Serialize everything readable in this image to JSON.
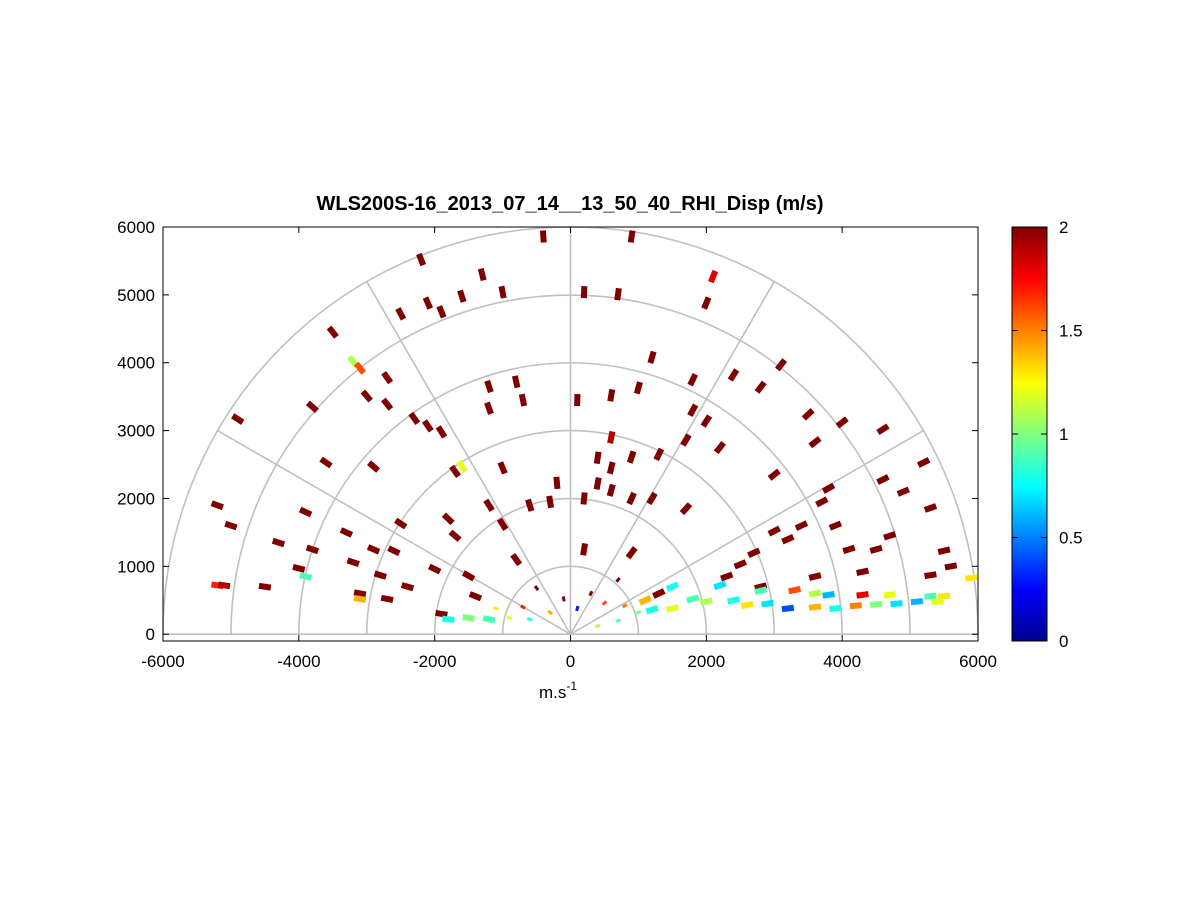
{
  "chart_data": {
    "type": "heatmap",
    "title": "WLS200S-16_2013_07_14__13_50_40_RHI_Disp (m/s)",
    "xlabel_base": "m.s",
    "xlabel_exp": "-1",
    "ylabel": "",
    "xlim": [
      -6000,
      6000
    ],
    "ylim": [
      -100,
      6000
    ],
    "xticks": [
      -6000,
      -4000,
      -2000,
      0,
      2000,
      4000,
      6000
    ],
    "xtick_labels": [
      "-6000",
      "-4000",
      "-2000",
      "0",
      "2000",
      "4000",
      "6000"
    ],
    "yticks": [
      0,
      1000,
      2000,
      3000,
      4000,
      5000,
      6000
    ],
    "ytick_labels": [
      "0",
      "1000",
      "2000",
      "3000",
      "4000",
      "5000",
      "6000"
    ],
    "polar_grid": {
      "range_rings": [
        1000,
        2000,
        3000,
        4000,
        5000,
        6000
      ],
      "spoke_angles_deg": [
        0,
        30,
        60,
        90,
        120,
        150,
        180
      ]
    },
    "colorbar": {
      "colormap": "jet",
      "limits": [
        0,
        2
      ],
      "ticks": [
        0,
        0.5,
        1,
        1.5,
        2
      ],
      "tick_labels": [
        "0",
        "0.5",
        "1",
        "1.5",
        "2"
      ]
    },
    "grid": true,
    "legend": "none",
    "cells_note_units": "x,y in data units; value in m/s",
    "cells": [
      [
        -400,
        5860,
        2
      ],
      [
        900,
        5860,
        2
      ],
      [
        -2200,
        5520,
        2
      ],
      [
        -1300,
        5300,
        2
      ],
      [
        -1000,
        5040,
        2
      ],
      [
        200,
        5040,
        2
      ],
      [
        2100,
        5270,
        1.8
      ],
      [
        2000,
        4880,
        2
      ],
      [
        -1600,
        4980,
        2
      ],
      [
        -2100,
        4880,
        2
      ],
      [
        -2500,
        4720,
        2
      ],
      [
        -1900,
        4750,
        2
      ],
      [
        700,
        5010,
        2
      ],
      [
        -3500,
        4450,
        2
      ],
      [
        -3800,
        3350,
        2
      ],
      [
        -4900,
        3170,
        2
      ],
      [
        -3200,
        4020,
        1.1
      ],
      [
        -3100,
        3920,
        1.6
      ],
      [
        -2700,
        3780,
        2
      ],
      [
        1200,
        4080,
        2
      ],
      [
        2400,
        3820,
        2
      ],
      [
        3100,
        3970,
        2
      ],
      [
        2800,
        3640,
        2
      ],
      [
        1800,
        3750,
        2
      ],
      [
        -1200,
        3650,
        2
      ],
      [
        -800,
        3720,
        2
      ],
      [
        -2700,
        3390,
        2
      ],
      [
        -3000,
        3510,
        2
      ],
      [
        -1200,
        3330,
        2
      ],
      [
        -700,
        3450,
        2
      ],
      [
        1000,
        3630,
        2
      ],
      [
        600,
        3520,
        2
      ],
      [
        100,
        3450,
        2
      ],
      [
        1800,
        3300,
        2
      ],
      [
        2000,
        3140,
        2
      ],
      [
        -2300,
        3180,
        2
      ],
      [
        -2100,
        3070,
        2
      ],
      [
        -1900,
        2980,
        2
      ],
      [
        3500,
        3240,
        2
      ],
      [
        4000,
        3120,
        2
      ],
      [
        4600,
        3020,
        2
      ],
      [
        3600,
        2830,
        2
      ],
      [
        1700,
        2860,
        2
      ],
      [
        2200,
        2750,
        2
      ],
      [
        1300,
        2650,
        2
      ],
      [
        900,
        2610,
        2
      ],
      [
        600,
        2450,
        2
      ],
      [
        400,
        2600,
        2
      ],
      [
        1700,
        1850,
        2
      ],
      [
        -1600,
        2470,
        1.2
      ],
      [
        -1700,
        2400,
        2
      ],
      [
        -1000,
        2450,
        2
      ],
      [
        -3600,
        2530,
        2
      ],
      [
        -2900,
        2470,
        2
      ],
      [
        -5200,
        1900,
        2
      ],
      [
        -5000,
        1600,
        2
      ],
      [
        -4300,
        1350,
        2
      ],
      [
        -3900,
        1800,
        2
      ],
      [
        -3800,
        1250,
        2
      ],
      [
        -3300,
        1500,
        2
      ],
      [
        -2900,
        1250,
        2
      ],
      [
        -3200,
        1060,
        2
      ],
      [
        -4000,
        970,
        2
      ],
      [
        -4500,
        700,
        2
      ],
      [
        -5200,
        720,
        1.7
      ],
      [
        -5100,
        720,
        1.9
      ],
      [
        -3900,
        850,
        0.9
      ],
      [
        -3100,
        600,
        2
      ],
      [
        -2800,
        870,
        2
      ],
      [
        -2700,
        520,
        2
      ],
      [
        -2400,
        700,
        2
      ],
      [
        -2500,
        1630,
        2
      ],
      [
        -2600,
        1230,
        2
      ],
      [
        -2000,
        960,
        2
      ],
      [
        -1800,
        1700,
        2
      ],
      [
        -1700,
        1450,
        2
      ],
      [
        -1200,
        1900,
        2
      ],
      [
        -1000,
        1620,
        2
      ],
      [
        -1500,
        860,
        2
      ],
      [
        -3100,
        520,
        1.4
      ],
      [
        -1900,
        300,
        2
      ],
      [
        3000,
        2350,
        2
      ],
      [
        3800,
        2150,
        2
      ],
      [
        4600,
        2280,
        2
      ],
      [
        5200,
        2530,
        2
      ],
      [
        4900,
        2100,
        2
      ],
      [
        5300,
        1860,
        2
      ],
      [
        3700,
        1950,
        2
      ],
      [
        3400,
        1600,
        2
      ],
      [
        3900,
        1600,
        2
      ],
      [
        4100,
        1250,
        2
      ],
      [
        4500,
        1250,
        2
      ],
      [
        4700,
        1450,
        2
      ],
      [
        5500,
        1230,
        2
      ],
      [
        5600,
        1000,
        2
      ],
      [
        3000,
        1520,
        2
      ],
      [
        3200,
        1400,
        2
      ],
      [
        2700,
        1200,
        2
      ],
      [
        2500,
        1030,
        2
      ],
      [
        2300,
        850,
        2
      ],
      [
        2800,
        700,
        2
      ],
      [
        3600,
        850,
        2
      ],
      [
        4300,
        920,
        2
      ],
      [
        5300,
        870,
        2
      ],
      [
        5900,
        830,
        1.3
      ],
      [
        -200,
        2230,
        2
      ],
      [
        400,
        2220,
        2
      ],
      [
        600,
        2120,
        2
      ],
      [
        900,
        2000,
        2
      ],
      [
        1200,
        2000,
        2
      ],
      [
        200,
        2000,
        2
      ],
      [
        -300,
        1950,
        2
      ],
      [
        -600,
        1900,
        2
      ],
      [
        600,
        2900,
        1.9
      ],
      [
        1500,
        700,
        0.8
      ],
      [
        2200,
        720,
        0.7
      ],
      [
        2800,
        640,
        0.9
      ],
      [
        3300,
        650,
        1.6
      ],
      [
        3600,
        600,
        1.1
      ],
      [
        3800,
        580,
        0.6
      ],
      [
        4300,
        580,
        1.8
      ],
      [
        4700,
        580,
        1.2
      ],
      [
        5300,
        560,
        0.9
      ],
      [
        5500,
        560,
        1.3
      ],
      [
        3200,
        380,
        0.4
      ],
      [
        3600,
        400,
        1.4
      ],
      [
        3900,
        380,
        0.8
      ],
      [
        4200,
        420,
        1.5
      ],
      [
        4500,
        440,
        1.0
      ],
      [
        4800,
        450,
        0.7
      ],
      [
        5100,
        480,
        0.6
      ],
      [
        5400,
        480,
        1.2
      ],
      [
        1800,
        520,
        0.9
      ],
      [
        2000,
        480,
        1.1
      ],
      [
        2400,
        500,
        0.8
      ],
      [
        2600,
        430,
        1.3
      ],
      [
        2900,
        450,
        0.7
      ],
      [
        1000,
        320,
        1.0
      ],
      [
        1200,
        360,
        0.8
      ],
      [
        1500,
        380,
        1.2
      ],
      [
        700,
        200,
        0.9
      ],
      [
        400,
        120,
        1.1
      ],
      [
        -600,
        220,
        0.8
      ],
      [
        -900,
        240,
        1.2
      ],
      [
        -1200,
        220,
        0.9
      ],
      [
        -1500,
        240,
        1.0
      ],
      [
        -1800,
        220,
        0.8
      ],
      [
        -300,
        320,
        1.4
      ],
      [
        100,
        380,
        0.3
      ],
      [
        500,
        460,
        1.6
      ],
      [
        -100,
        520,
        2
      ],
      [
        300,
        600,
        2
      ],
      [
        -500,
        680,
        2
      ],
      [
        700,
        800,
        2
      ],
      [
        -800,
        1100,
        2
      ],
      [
        900,
        1200,
        2
      ],
      [
        200,
        1250,
        2
      ],
      [
        -1400,
        560,
        2
      ],
      [
        1300,
        600,
        2
      ],
      [
        -700,
        400,
        1.7
      ],
      [
        800,
        420,
        1.5
      ],
      [
        -1100,
        380,
        1.3
      ],
      [
        1100,
        500,
        1.4
      ]
    ]
  }
}
